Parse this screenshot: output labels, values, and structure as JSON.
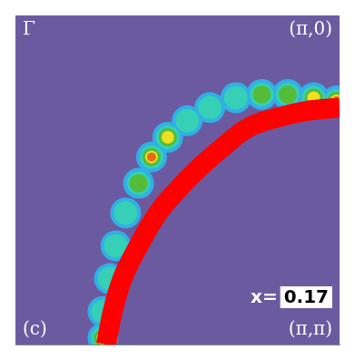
{
  "chart_data": {
    "type": "scatter",
    "xlim": [
      0,
      1
    ],
    "ylim": [
      1,
      0
    ],
    "tick_labels": false,
    "grid": false,
    "annotations": [
      {
        "text": "Γ",
        "x": 0,
        "y": 0
      },
      {
        "text": "(π,0)",
        "x": 1,
        "y": 0
      },
      {
        "text": "(π,π)",
        "x": 1,
        "y": 1
      },
      {
        "text": "(c)",
        "x": 0,
        "y": 1
      }
    ],
    "doping_label": "x=",
    "doping": 0.17,
    "intensity": {
      "x": [
        0.27,
        0.27,
        0.29,
        0.31,
        0.34,
        0.38,
        0.42,
        0.47,
        0.53,
        0.6,
        0.68,
        0.76,
        0.84,
        0.92,
        0.99
      ],
      "y": [
        0.98,
        0.9,
        0.8,
        0.7,
        0.6,
        0.51,
        0.43,
        0.37,
        0.32,
        0.28,
        0.25,
        0.24,
        0.24,
        0.25,
        0.26
      ],
      "values": [
        0.8,
        0.6,
        0.55,
        0.6,
        0.6,
        0.7,
        0.95,
        0.85,
        0.6,
        0.55,
        0.6,
        0.7,
        0.75,
        0.8,
        0.95
      ]
    },
    "fermi_surface": {
      "x": [
        0.28,
        0.3,
        0.33,
        0.38,
        0.44,
        0.5,
        0.57,
        0.64,
        0.72,
        0.81,
        0.9,
        1.0
      ],
      "y": [
        1.0,
        0.9,
        0.8,
        0.7,
        0.6,
        0.53,
        0.46,
        0.4,
        0.34,
        0.31,
        0.29,
        0.28
      ],
      "color": "#ff0000"
    }
  }
}
